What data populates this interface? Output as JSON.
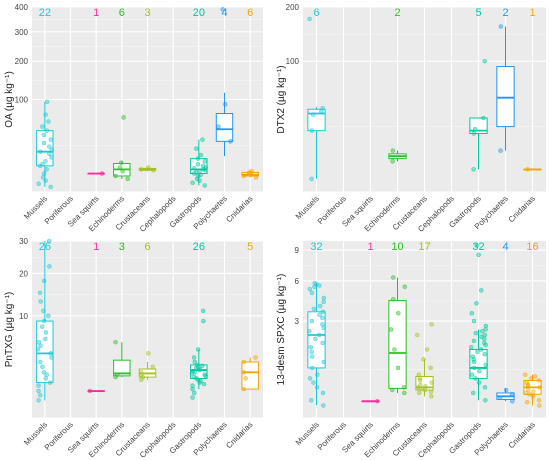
{
  "colors": {
    "Mussels": "#1fc8d6",
    "Poriferous": "#999999",
    "Sea squirts": "#ff2b9f",
    "Echinoderms": "#27c127",
    "Crustaceans": "#a4c21e",
    "Cephalopods": "#999999",
    "Gastropods": "#00c8a0",
    "Polychaetes": "#2196f3",
    "Cnidarias": "#f0a500"
  },
  "chart_data": [
    {
      "type": "box",
      "ylabel": "OA (µg kg⁻¹)",
      "scale": "sqrt",
      "ylim": [
        0,
        400
      ],
      "yticks": [
        0,
        100,
        200,
        300,
        400
      ],
      "yticklabels": [
        "",
        "100",
        "200",
        "300",
        "400"
      ],
      "categories": [
        "Mussels",
        "Poriferous",
        "Sea squirts",
        "Echinoderms",
        "Crustaceans",
        "Cephalopods",
        "Gastropods",
        "Polychaetes",
        "Cnidarias"
      ],
      "counts": [
        "22",
        "",
        "1",
        "6",
        "3",
        "",
        "20",
        "4",
        "6"
      ],
      "boxes": [
        {
          "cat": "Mussels",
          "min": 0.3,
          "q1": 8,
          "median": 19,
          "q3": 44,
          "max": 95
        },
        {
          "cat": "Sea squirts",
          "min": 4,
          "q1": 4,
          "median": 4,
          "q3": 4,
          "max": 4
        },
        {
          "cat": "Echinoderms",
          "min": 2,
          "q1": 3,
          "median": 6,
          "q3": 9.5,
          "max": 11
        },
        {
          "cat": "Crustaceans",
          "min": 5,
          "q1": 5.5,
          "median": 6,
          "q3": 6.5,
          "max": 7
        },
        {
          "cat": "Gastropods",
          "min": 0.5,
          "q1": 4,
          "median": 6,
          "q3": 13,
          "max": 32
        },
        {
          "cat": "Polychaetes",
          "min": 15,
          "q1": 30,
          "median": 46,
          "q3": 72,
          "max": 115
        },
        {
          "cat": "Cnidarias",
          "min": 2.5,
          "q1": 3,
          "median": 3.5,
          "q3": 4.5,
          "max": 5
        }
      ],
      "points": [
        {
          "cat": "Mussels",
          "values": [
            0.3,
            0.8,
            1.5,
            2.5,
            4,
            6,
            8,
            9,
            11,
            14,
            17,
            19,
            21,
            24,
            28,
            32,
            38,
            44,
            50,
            58,
            70,
            95
          ]
        },
        {
          "cat": "Sea squirts",
          "values": [
            4
          ]
        },
        {
          "cat": "Echinoderms",
          "values": [
            2,
            3,
            5,
            7,
            10,
            65
          ]
        },
        {
          "cat": "Crustaceans",
          "values": [
            5.5,
            6,
            7
          ]
        },
        {
          "cat": "Gastropods",
          "values": [
            0.5,
            1,
            1.5,
            2,
            3,
            3.5,
            4,
            4.5,
            5,
            5.5,
            6,
            6.5,
            7,
            8,
            9,
            11,
            13,
            16,
            22,
            32
          ]
        },
        {
          "cat": "Polychaetes",
          "values": [
            30,
            50,
            90,
            390
          ]
        },
        {
          "cat": "Cnidarias",
          "values": [
            2.5,
            3,
            3.5,
            4,
            4.5,
            5
          ]
        }
      ]
    },
    {
      "type": "box",
      "ylabel": "DTX2 (µg kg⁻¹)",
      "scale": "sqrt",
      "ylim": [
        0,
        200
      ],
      "yticks": [
        0,
        100,
        200
      ],
      "yticklabels": [
        "",
        "100",
        "200"
      ],
      "categories": [
        "Mussels",
        "Poriferous",
        "Sea squirts",
        "Echinoderms",
        "Crustaceans",
        "Cephalopods",
        "Gastropods",
        "Polychaetes",
        "Cnidarias"
      ],
      "counts": [
        "6",
        "",
        "",
        "2",
        "",
        "",
        "5",
        "2",
        "1"
      ],
      "boxes": [
        {
          "cat": "Mussels",
          "min": 1,
          "q1": 22,
          "median": 36,
          "q3": 40,
          "max": 42
        },
        {
          "cat": "Echinoderms",
          "min": 5.5,
          "q1": 6.5,
          "median": 7.5,
          "q3": 8.5,
          "max": 10
        },
        {
          "cat": "Gastropods",
          "min": 3,
          "q1": 20,
          "median": 22,
          "q3": 32,
          "max": 32
        },
        {
          "cat": "Polychaetes",
          "min": 10,
          "q1": 25,
          "median": 52,
          "q3": 92,
          "max": 160
        },
        {
          "cat": "Cnidarias",
          "min": 3,
          "q1": 3,
          "median": 3,
          "q3": 3,
          "max": 3
        }
      ],
      "points": [
        {
          "cat": "Mussels",
          "values": [
            1,
            22,
            35,
            38,
            41,
            175
          ]
        },
        {
          "cat": "Echinoderms",
          "values": [
            5.5,
            10
          ]
        },
        {
          "cat": "Gastropods",
          "values": [
            3,
            20,
            23,
            32,
            100
          ]
        },
        {
          "cat": "Polychaetes",
          "values": [
            10,
            160
          ]
        },
        {
          "cat": "Cnidarias",
          "values": [
            3
          ]
        }
      ]
    },
    {
      "type": "box",
      "ylabel": "PnTXG (µg kg⁻¹)",
      "scale": "sqrt",
      "ylim": [
        0,
        30
      ],
      "yticks": [
        0,
        10,
        20,
        30
      ],
      "yticklabels": [
        "",
        "10",
        "20",
        "30"
      ],
      "categories": [
        "Mussels",
        "Poriferous",
        "Sea squirts",
        "Echinoderms",
        "Crustaceans",
        "Cephalopods",
        "Gastropods",
        "Polychaetes",
        "Cnidarias"
      ],
      "counts": [
        "26",
        "",
        "1",
        "3",
        "6",
        "",
        "26",
        "",
        "5"
      ],
      "boxes": [
        {
          "cat": "Mussels",
          "min": 0.3,
          "q1": 1.2,
          "median": 4,
          "q3": 9,
          "max": 30
        },
        {
          "cat": "Sea squirts",
          "min": 0.7,
          "q1": 0.7,
          "median": 0.7,
          "q3": 0.7,
          "max": 0.7
        },
        {
          "cat": "Echinoderms",
          "min": 1.6,
          "q1": 1.7,
          "median": 1.9,
          "q3": 3.2,
          "max": 5.5
        },
        {
          "cat": "Crustaceans",
          "min": 1.4,
          "q1": 1.6,
          "median": 1.9,
          "q3": 2.3,
          "max": 3
        },
        {
          "cat": "Gastropods",
          "min": 0.8,
          "q1": 1.5,
          "median": 2.2,
          "q3": 2.7,
          "max": 4.5
        },
        {
          "cat": "Cnidarias",
          "min": 0.8,
          "q1": 0.8,
          "median": 2,
          "q3": 3,
          "max": 3.5
        }
      ],
      "points": [
        {
          "cat": "Mussels",
          "values": [
            0.3,
            0.5,
            0.7,
            1,
            1.2,
            1.5,
            1.8,
            2,
            2.5,
            3,
            3.5,
            4,
            4.5,
            5,
            5.5,
            6,
            7,
            8,
            9,
            10,
            11,
            13,
            15,
            18,
            22,
            30
          ]
        },
        {
          "cat": "Sea squirts",
          "values": [
            0.7
          ]
        },
        {
          "cat": "Echinoderms",
          "values": [
            1.6,
            1.8,
            5.5
          ]
        },
        {
          "cat": "Crustaceans",
          "values": [
            1.4,
            1.6,
            1.8,
            2,
            2.5,
            4
          ]
        },
        {
          "cat": "Gastropods",
          "values": [
            0.4,
            0.6,
            0.8,
            1,
            1.1,
            1.2,
            1.3,
            1.4,
            1.5,
            1.6,
            1.7,
            1.8,
            1.9,
            2,
            2.1,
            2.2,
            2.3,
            2.4,
            2.5,
            2.6,
            2.7,
            3,
            3.5,
            4.5,
            9,
            11
          ]
        },
        {
          "cat": "Cnidarias",
          "values": [
            0.8,
            1.5,
            2,
            3,
            3.5
          ]
        }
      ]
    },
    {
      "type": "box",
      "ylabel": "13-desm SPXC (µg kg⁻¹)",
      "scale": "sqrt",
      "ylim": [
        0,
        10
      ],
      "yticks": [
        0,
        3,
        6,
        9
      ],
      "yticklabels": [
        "",
        "3",
        "6",
        "9"
      ],
      "categories": [
        "Mussels",
        "Poriferous",
        "Sea squirts",
        "Echinoderms",
        "Crustaceans",
        "Cephalopods",
        "Gastropods",
        "Polychaetes",
        "Cnidarias"
      ],
      "counts": [
        "32",
        "",
        "1",
        "10",
        "17",
        "",
        "32",
        "4",
        "16"
      ],
      "boxes": [
        {
          "cat": "Mussels",
          "min": 0.05,
          "q1": 0.8,
          "median": 2.2,
          "q3": 3.6,
          "max": 5.8
        },
        {
          "cat": "Sea squirts",
          "min": 0.09,
          "q1": 0.09,
          "median": 0.09,
          "q3": 0.09,
          "max": 0.09
        },
        {
          "cat": "Echinoderms",
          "min": 0.2,
          "q1": 0.28,
          "median": 1.35,
          "q3": 4.4,
          "max": 6.3
        },
        {
          "cat": "Crustaceans",
          "min": 0.15,
          "q1": 0.25,
          "median": 0.3,
          "q3": 0.55,
          "max": 1.1
        },
        {
          "cat": "Gastropods",
          "min": 0.1,
          "q1": 0.5,
          "median": 0.8,
          "q3": 1.5,
          "max": 2.5
        },
        {
          "cat": "Polychaetes",
          "min": 0.09,
          "q1": 0.11,
          "median": 0.15,
          "q3": 0.2,
          "max": 0.28
        },
        {
          "cat": "Cnidarias",
          "min": 0.05,
          "q1": 0.18,
          "median": 0.3,
          "q3": 0.45,
          "max": 0.6
        }
      ],
      "points": [
        {
          "cat": "Mussels",
          "values": [
            0.05,
            0.1,
            0.2,
            0.3,
            0.4,
            0.5,
            0.6,
            0.8,
            1,
            1.2,
            1.4,
            1.6,
            1.8,
            2,
            2.2,
            2.4,
            2.6,
            2.8,
            3,
            3.2,
            3.4,
            3.6,
            3.8,
            4,
            4.3,
            4.6,
            5,
            5.3,
            5.5,
            5.6,
            5.7,
            5.8
          ]
        },
        {
          "cat": "Sea squirts",
          "values": [
            0.09
          ]
        },
        {
          "cat": "Echinoderms",
          "values": [
            0.2,
            0.25,
            0.3,
            0.8,
            1.5,
            2.5,
            3.5,
            4.5,
            5.5,
            6.3
          ]
        },
        {
          "cat": "Crustaceans",
          "values": [
            0.15,
            0.2,
            0.22,
            0.25,
            0.27,
            0.3,
            0.32,
            0.35,
            0.4,
            0.45,
            0.5,
            0.6,
            0.8,
            1.1,
            1.5,
            2.2,
            2.8
          ]
        },
        {
          "cat": "Gastropods",
          "values": [
            0.1,
            0.2,
            0.3,
            0.4,
            0.5,
            0.6,
            0.7,
            0.8,
            0.9,
            1,
            1.1,
            1.2,
            1.3,
            1.4,
            1.5,
            1.6,
            1.7,
            1.8,
            1.9,
            2,
            2.1,
            2.2,
            2.3,
            2.4,
            2.5,
            2.7,
            3,
            3.5,
            4.2,
            5.2,
            8.5,
            9.5
          ]
        },
        {
          "cat": "Polychaetes",
          "values": [
            0.09,
            0.13,
            0.18,
            0.25
          ]
        },
        {
          "cat": "Cnidarias",
          "values": [
            0.05,
            0.08,
            0.1,
            0.15,
            0.18,
            0.2,
            0.22,
            0.25,
            0.3,
            0.33,
            0.36,
            0.4,
            0.45,
            0.5,
            0.55,
            0.6
          ]
        }
      ]
    }
  ]
}
